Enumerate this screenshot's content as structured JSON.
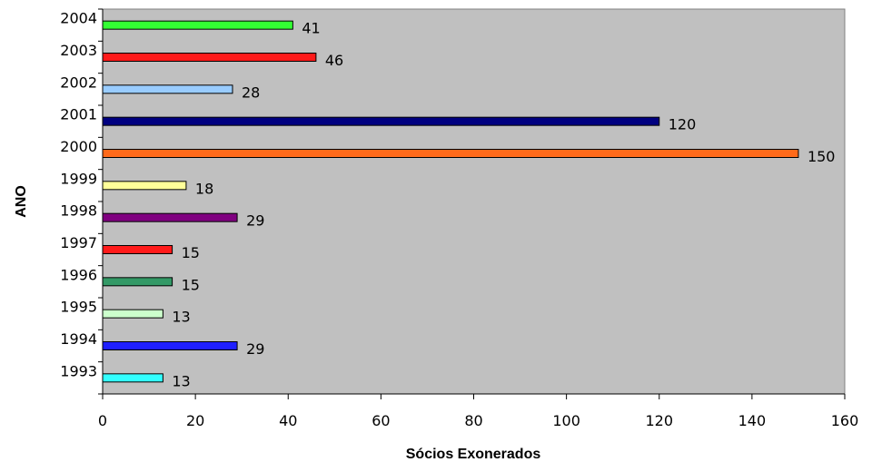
{
  "chart_data": {
    "type": "bar",
    "orientation": "horizontal",
    "title": "",
    "xlabel": "Sócios Exonerados",
    "ylabel": "ANO",
    "xlim": [
      0,
      160
    ],
    "xticks": [
      0,
      20,
      40,
      60,
      80,
      100,
      120,
      140,
      160
    ],
    "grid": false,
    "legend": "none",
    "plot_background": "#c0c0c0",
    "categories": [
      "1993",
      "1994",
      "1995",
      "1996",
      "1997",
      "1998",
      "1999",
      "2000",
      "2001",
      "2002",
      "2003",
      "2004"
    ],
    "values": [
      13,
      29,
      13,
      15,
      15,
      29,
      18,
      150,
      120,
      28,
      46,
      41
    ],
    "bar_colors": [
      "#33ffff",
      "#1f1fff",
      "#ccffcc",
      "#339966",
      "#ff1a1a",
      "#800080",
      "#ffff99",
      "#ff6a1a",
      "#000080",
      "#99ccff",
      "#ff1a1a",
      "#33ff33"
    ],
    "data_labels": [
      "13",
      "29",
      "13",
      "15",
      "15",
      "29",
      "18",
      "150",
      "120",
      "28",
      "46",
      "41"
    ]
  }
}
